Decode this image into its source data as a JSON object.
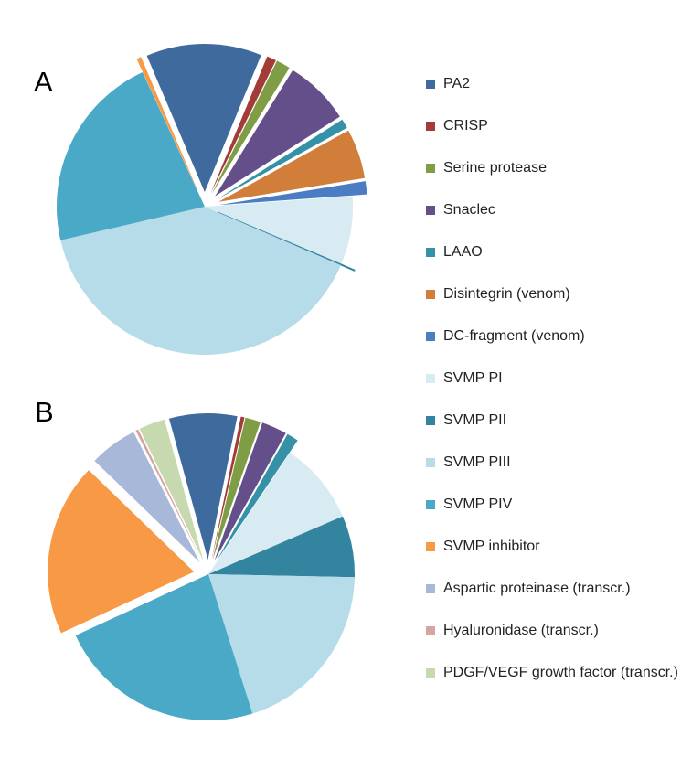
{
  "chart_data": [
    {
      "type": "pie",
      "title": "A",
      "start_angle_deg": 337,
      "slices": [
        {
          "label": "PA2",
          "value": 12.3,
          "exploded": true
        },
        {
          "label": "CRISP",
          "value": 1.0,
          "exploded": true
        },
        {
          "label": "Serine protease",
          "value": 1.5,
          "exploded": true
        },
        {
          "label": "Snaclec",
          "value": 7.0,
          "exploded": true
        },
        {
          "label": "LAAO",
          "value": 1.0,
          "exploded": true
        },
        {
          "label": "Disintegrin (venom)",
          "value": 5.3,
          "exploded": true
        },
        {
          "label": "DC-fragment (venom)",
          "value": 1.4,
          "exploded": true
        },
        {
          "label": "SVMP PI",
          "value": 7.3,
          "exploded": false
        },
        {
          "label": "SVMP PII",
          "value": 0.1,
          "exploded": true
        },
        {
          "label": "SVMP PIII",
          "value": 38.9,
          "exploded": false
        },
        {
          "label": "SVMP PIV",
          "value": 21.2,
          "exploded": false
        },
        {
          "label": "SVMP inhibitor",
          "value": 0.5,
          "exploded": true
        },
        {
          "label": "Aspartic proteinase (transcr.)",
          "value": 0,
          "exploded": false
        },
        {
          "label": "Hyaluronidase (transcr.)",
          "value": 0,
          "exploded": false
        },
        {
          "label": "PDGF/VEGF growth factor (transcr.)",
          "value": 0,
          "exploded": false
        }
      ]
    },
    {
      "type": "pie",
      "title": "B",
      "start_angle_deg": 344.6,
      "slices": [
        {
          "label": "PA2",
          "value": 7.5,
          "exploded": true
        },
        {
          "label": "CRISP",
          "value": 0.4,
          "exploded": true
        },
        {
          "label": "Serine protease",
          "value": 1.7,
          "exploded": true
        },
        {
          "label": "Snaclec",
          "value": 2.8,
          "exploded": true
        },
        {
          "label": "LAAO",
          "value": 1.3,
          "exploded": true
        },
        {
          "label": "Disintegrin (venom)",
          "value": 0,
          "exploded": false
        },
        {
          "label": "DC-fragment (venom)",
          "value": 0,
          "exploded": false
        },
        {
          "label": "SVMP PI",
          "value": 9.1,
          "exploded": false
        },
        {
          "label": "SVMP PII",
          "value": 6.8,
          "exploded": false
        },
        {
          "label": "SVMP PIII",
          "value": 19.8,
          "exploded": false
        },
        {
          "label": "SVMP PIV",
          "value": 23.0,
          "exploded": false
        },
        {
          "label": "SVMP inhibitor",
          "value": 19.1,
          "exploded": true
        },
        {
          "label": "Aspartic proteinase (transcr.)",
          "value": 5.3,
          "exploded": true
        },
        {
          "label": "Hyaluronidase (transcr.)",
          "value": 0.3,
          "exploded": true
        },
        {
          "label": "PDGF/VEGF growth factor (transcr.)",
          "value": 2.9,
          "exploded": true
        }
      ]
    }
  ],
  "legend": {
    "placement": "right",
    "items": [
      {
        "label": "PA2",
        "color": "#3E6A9E"
      },
      {
        "label": "CRISP",
        "color": "#A33B38"
      },
      {
        "label": "Serine protease",
        "color": "#7E9D45"
      },
      {
        "label": "Snaclec",
        "color": "#654F8A"
      },
      {
        "label": "LAAO",
        "color": "#3591A7"
      },
      {
        "label": "Disintegrin (venom)",
        "color": "#D07E39"
      },
      {
        "label": "DC-fragment (venom)",
        "color": "#4A7DC1"
      },
      {
        "label": "SVMP PI",
        "color": "#D8EBF3"
      },
      {
        "label": "SVMP PII",
        "color": "#33849F"
      },
      {
        "label": "SVMP PIII",
        "color": "#B5DCE8"
      },
      {
        "label": "SVMP PIV",
        "color": "#4AA9C6"
      },
      {
        "label": "SVMP inhibitor",
        "color": "#F79945"
      },
      {
        "label": "Aspartic proteinase (transcr.)",
        "color": "#A7B8D9"
      },
      {
        "label": "Hyaluronidase (transcr.)",
        "color": "#D8A3A3"
      },
      {
        "label": "PDGF/VEGF growth factor (transcr.)",
        "color": "#C6D9AF"
      }
    ]
  }
}
